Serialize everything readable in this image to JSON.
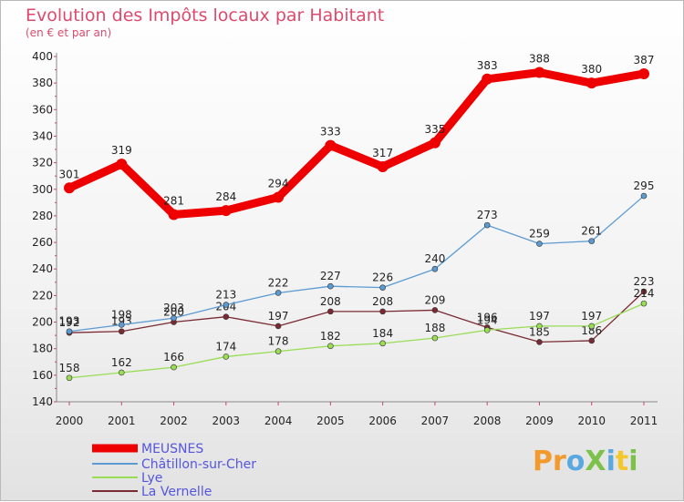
{
  "chart_data": {
    "type": "line",
    "title": "Evolution des Impôts locaux par Habitant",
    "subtitle": "(en € et par an)",
    "x": [
      "2000",
      "2001",
      "2002",
      "2003",
      "2004",
      "2005",
      "2006",
      "2007",
      "2008",
      "2009",
      "2010",
      "2011"
    ],
    "ylim": [
      140,
      400
    ],
    "yticks": [
      140,
      160,
      180,
      200,
      220,
      240,
      260,
      280,
      300,
      320,
      340,
      360,
      380,
      400
    ],
    "grid": false,
    "legend_position": "bottom-left",
    "series": [
      {
        "name": "MEUSNES",
        "color": "#ee0000",
        "values": [
          301,
          319,
          281,
          284,
          294,
          333,
          317,
          335,
          383,
          388,
          380,
          387
        ]
      },
      {
        "name": "Châtillon-sur-Cher",
        "color": "#5c9bd2",
        "values": [
          193,
          198,
          203,
          213,
          222,
          227,
          226,
          240,
          273,
          259,
          261,
          295
        ]
      },
      {
        "name": "Lye",
        "color": "#99dd55",
        "values": [
          158,
          162,
          166,
          174,
          178,
          182,
          184,
          188,
          194,
          197,
          197,
          214
        ]
      },
      {
        "name": "La Vernelle",
        "color": "#7a2a32",
        "values": [
          192,
          193,
          200,
          204,
          197,
          208,
          208,
          209,
          196,
          185,
          186,
          223
        ]
      }
    ]
  },
  "logo": {
    "text": "ProXiti",
    "letters": [
      "P",
      "r",
      "o",
      "X",
      "i",
      "t",
      "i"
    ],
    "colors": [
      "#f39a2e",
      "#f39a2e",
      "#5aa8e0",
      "#7cc24a",
      "#5aa8e0",
      "#f3c82e",
      "#7cc24a"
    ]
  }
}
